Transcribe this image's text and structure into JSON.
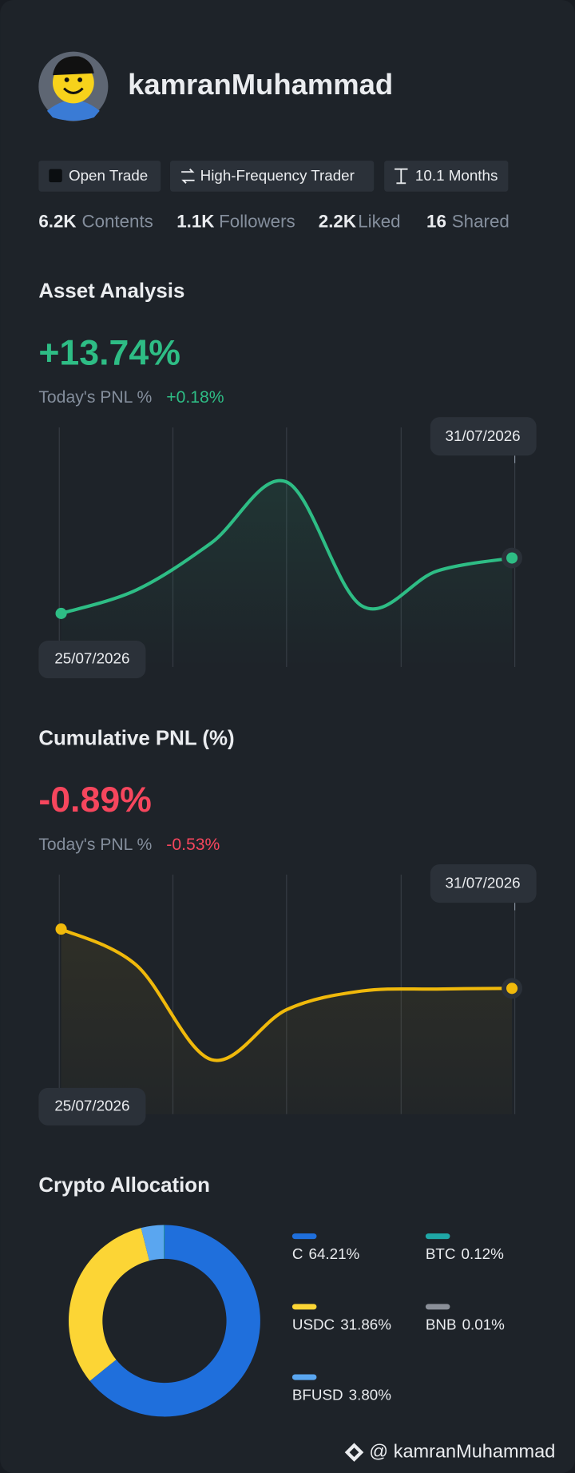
{
  "profile": {
    "username": "kamranMuhammad",
    "tags": [
      "Open Trade",
      "High-Frequency Trader",
      "10.1 Months"
    ],
    "stats": [
      {
        "value": "6.2K",
        "label": "Contents"
      },
      {
        "value": "1.1K",
        "label": "Followers"
      },
      {
        "value": "2.2K",
        "label": "Liked"
      },
      {
        "value": "16",
        "label": "Shared"
      }
    ]
  },
  "asset_analysis": {
    "title": "Asset Analysis",
    "headline": "+13.74%",
    "today_label": "Today's PNL %",
    "today_value": "+0.18%",
    "chart_data": {
      "type": "line",
      "categories": [
        "25/07/2026",
        null,
        null,
        null,
        null,
        null,
        "31/07/2026"
      ],
      "values": [
        0,
        5.8,
        17.5,
        32.6,
        1.9,
        10.5,
        13.74
      ],
      "color": "#2ebd85"
    }
  },
  "cumulative_pnl": {
    "title": "Cumulative PNL (%)",
    "headline": "-0.89%",
    "today_label": "Today's PNL %",
    "today_value": "-0.53%",
    "chart_data": {
      "type": "line",
      "categories": [
        "25/07/2026",
        null,
        null,
        null,
        null,
        null,
        "31/07/2026"
      ],
      "values": [
        0,
        -0.54,
        -1.96,
        -1.21,
        -0.93,
        -0.9,
        -0.89
      ],
      "color": "#f0b90b"
    }
  },
  "crypto_allocation": {
    "title": "Crypto Allocation",
    "chart_data": {
      "type": "pie",
      "categories": [
        "C",
        "USDC",
        "BFUSD",
        "BTC",
        "BNB"
      ],
      "values": [
        64.21,
        31.86,
        3.8,
        0.12,
        0.01
      ],
      "value_labels": [
        "64.21%",
        "31.86%",
        "3.80%",
        "0.12%",
        "0.01%"
      ],
      "colors": [
        "#1f6fdc",
        "#fcd535",
        "#5aa6f0",
        "#1fa7a6",
        "#8a8f98"
      ]
    }
  },
  "footer": "@ kamranMuhammad"
}
